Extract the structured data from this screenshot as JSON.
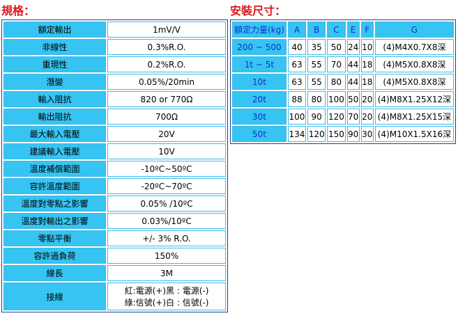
{
  "spec": {
    "title": "規格：",
    "rows": [
      [
        "額定輸出",
        "1mV/V"
      ],
      [
        "非線性",
        "0.3%R.O."
      ],
      [
        "重現性",
        "0.2%R.O."
      ],
      [
        "潛變",
        "0.05%/20min"
      ],
      [
        "輸入阻抗",
        "820 or 770Ω"
      ],
      [
        "輸出阻抗",
        "700Ω"
      ],
      [
        "最大輸入電壓",
        "20V"
      ],
      [
        "建議輸入電壓",
        "10V"
      ],
      [
        "溫度補償範圍",
        "-10ºC~50ºC"
      ],
      [
        "容許溫度範圍",
        "-20ºC~70ºC"
      ],
      [
        "溫度對零點之影響",
        "0.05% /10ºC"
      ],
      [
        "溫度對輸出之影響",
        "0.03%/10ºC"
      ],
      [
        "零點平衡",
        "+/- 3% R.O."
      ],
      [
        "容許過負荷",
        "150%"
      ],
      [
        "線長",
        "3M"
      ],
      [
        "接線",
        "紅:電源(+)黑 : 電源(-)\n綠:信號(+)白 : 信號(-)"
      ]
    ]
  },
  "size": {
    "title": "安裝尺寸：",
    "header": [
      "額定力量(kg)",
      "A",
      "B",
      "C",
      "E",
      "F",
      "G"
    ],
    "rows": [
      [
        "200 ~ 500",
        "40",
        "35",
        "50",
        "24",
        "10",
        "(4)M4X0.7X8深"
      ],
      [
        "1t ~ 5t",
        "63",
        "55",
        "70",
        "44",
        "18",
        "(4)M5X0.8X8深"
      ],
      [
        "10t",
        "63",
        "55",
        "80",
        "44",
        "18",
        "(4)M5X0.8X8深"
      ],
      [
        "20t",
        "88",
        "80",
        "100",
        "50",
        "20",
        "(4)M8X1.25X12深"
      ],
      [
        "30t",
        "100",
        "90",
        "120",
        "70",
        "20",
        "(4)M8X1.25X15深"
      ],
      [
        "50t",
        "134",
        "120",
        "150",
        "90",
        "30",
        "(4)M10X1.5X16深"
      ]
    ]
  }
}
